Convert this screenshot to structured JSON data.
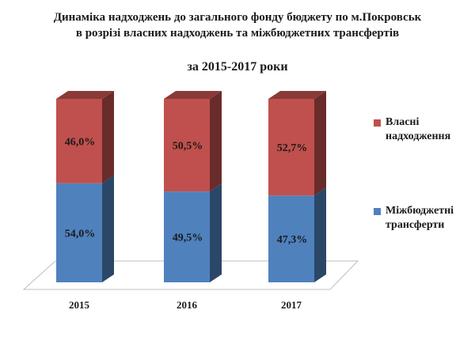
{
  "chart_data": {
    "type": "bar",
    "stacked": true,
    "three_d": true,
    "title_line1": "Динаміка надходжень до загального фонду бюджету по м.Покровськ",
    "title_line2": "в розрізі власних надходжень та міжбюджетних трансфертів",
    "subtitle": "за 2015-2017 роки",
    "categories": [
      "2015",
      "2016",
      "2017"
    ],
    "series": [
      {
        "name": "Міжбюджетні трансферти",
        "values": [
          54.0,
          49.5,
          47.3
        ],
        "labels": [
          "54,0%",
          "49,5%",
          "47,3%"
        ],
        "color": "#4f81bd"
      },
      {
        "name": "Власні надходження",
        "values": [
          46.0,
          50.5,
          52.7
        ],
        "labels": [
          "46,0%",
          "50,5%",
          "52,7%"
        ],
        "color": "#c0504d"
      }
    ],
    "ylim": [
      0,
      100
    ],
    "legend_position": "right",
    "grid": false
  }
}
